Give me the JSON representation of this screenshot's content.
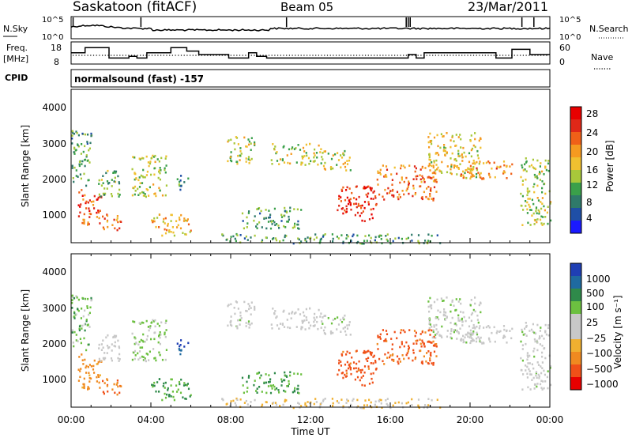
{
  "header": {
    "station": "Saskatoon (fitACF)",
    "beam": "Beam 05",
    "date": "23/Mar/2011"
  },
  "noise_panel": {
    "left_label": "N.Sky",
    "right_label": "N.Search",
    "left_ticks": [
      "10^5",
      "10^0"
    ],
    "right_ticks": [
      "10^5",
      "10^0"
    ]
  },
  "freq_panel": {
    "left_label_line1": "Freq.",
    "left_label_line2": "[MHz]",
    "left_ticks": [
      "18",
      "8"
    ],
    "right_label": "Nave",
    "right_ticks": [
      "60",
      "0"
    ],
    "freq_steps": [
      {
        "t": 0.0,
        "f": 14
      },
      {
        "t": 0.7,
        "f": 17
      },
      {
        "t": 1.9,
        "f": 11
      },
      {
        "t": 2.9,
        "f": 12
      },
      {
        "t": 3.3,
        "f": 11
      },
      {
        "t": 3.8,
        "f": 14
      },
      {
        "t": 5.0,
        "f": 17
      },
      {
        "t": 5.8,
        "f": 15
      },
      {
        "t": 6.4,
        "f": 13
      },
      {
        "t": 7.9,
        "f": 11
      },
      {
        "t": 8.9,
        "f": 14
      },
      {
        "t": 9.3,
        "f": 12
      },
      {
        "t": 9.8,
        "f": 11
      },
      {
        "t": 16.9,
        "f": 13
      },
      {
        "t": 17.3,
        "f": 11
      },
      {
        "t": 17.7,
        "f": 14
      },
      {
        "t": 21.3,
        "f": 11
      },
      {
        "t": 22.1,
        "f": 16
      },
      {
        "t": 23.0,
        "f": 13
      },
      {
        "t": 24.0,
        "f": 13
      }
    ],
    "nave_level": 30
  },
  "cpid": {
    "label": "CPID",
    "value": "normalsound (fast) -157"
  },
  "power_panel": {
    "ylabel": "Slant Range [km]",
    "yticks": [
      "4000",
      "3000",
      "2000",
      "1000"
    ],
    "colorbar_label": "Power [dB]",
    "colorbar_ticks": [
      "28",
      "24",
      "20",
      "16",
      "12",
      "8",
      "4"
    ],
    "colors": [
      "#1a1aff",
      "#1f4fa6",
      "#2f7a6a",
      "#3aa04a",
      "#a8c83a",
      "#f0c030",
      "#f59a20",
      "#f06018",
      "#e02818",
      "#e80000"
    ]
  },
  "velocity_panel": {
    "ylabel": "Slant Range [km]",
    "yticks": [
      "4000",
      "3000",
      "2000",
      "1000"
    ],
    "colorbar_label": "Velocity [m s⁻¹]",
    "colorbar_ticks": [
      "1000",
      "500",
      "100",
      "25",
      "−25",
      "−100",
      "−500",
      "−1000"
    ],
    "colors": [
      "#1f3fb4",
      "#1f6aa0",
      "#2f8a4a",
      "#6cc040",
      "#c8c8c8",
      "#c8c8c8",
      "#f0b030",
      "#f08a20",
      "#f05018",
      "#e80000"
    ]
  },
  "xaxis": {
    "label": "Time UT",
    "ticks": [
      "00:00",
      "04:00",
      "08:00",
      "12:00",
      "16:00",
      "20:00",
      "00:00"
    ]
  },
  "chart_data": {
    "type": "heatmap",
    "title": "Saskatoon (fitACF)   Beam 05   23/Mar/2011",
    "xlabel": "Time UT",
    "ylabel": "Slant Range [km]",
    "xlim_hours": [
      0,
      24
    ],
    "ylim_km": [
      180,
      4500
    ],
    "power_range_db": [
      0,
      30
    ],
    "velocity_range_ms": [
      -1000,
      1000
    ],
    "regions": [
      {
        "name": "early-sea-scatter",
        "t0": 0.3,
        "t1": 1.5,
        "r0": 700,
        "r1": 1700,
        "power": 24,
        "velocity": -150
      },
      {
        "name": "early-upper",
        "t0": 0.0,
        "t1": 1.0,
        "r0": 1800,
        "r1": 3400,
        "power": 10,
        "velocity": 40
      },
      {
        "name": "early-mid",
        "t0": 1.3,
        "t1": 2.5,
        "r0": 1500,
        "r1": 2300,
        "power": 12,
        "velocity": -20
      },
      {
        "name": "early-low",
        "t0": 1.5,
        "t1": 2.5,
        "r0": 500,
        "r1": 1000,
        "power": 22,
        "velocity": -300
      },
      {
        "name": "morning-mid",
        "t0": 3.0,
        "t1": 4.8,
        "r0": 1500,
        "r1": 2700,
        "power": 14,
        "velocity": 30
      },
      {
        "name": "morning-low",
        "t0": 4.0,
        "t1": 6.0,
        "r0": 400,
        "r1": 1000,
        "power": 18,
        "velocity": 60
      },
      {
        "name": "morning-high",
        "t0": 5.2,
        "t1": 5.9,
        "r0": 1700,
        "r1": 2100,
        "power": 8,
        "velocity": 800
      },
      {
        "name": "mid-upper",
        "t0": 7.8,
        "t1": 9.2,
        "r0": 2400,
        "r1": 3200,
        "power": 14,
        "velocity": 0
      },
      {
        "name": "mid-low",
        "t0": 8.5,
        "t1": 11.5,
        "r0": 600,
        "r1": 1200,
        "power": 10,
        "velocity": 60
      },
      {
        "name": "band-2600",
        "t0": 10.0,
        "t1": 12.5,
        "r0": 2400,
        "r1": 3000,
        "power": 14,
        "velocity": -10
      },
      {
        "name": "band-2600b",
        "t0": 12.5,
        "t1": 14.0,
        "r0": 2200,
        "r1": 2800,
        "power": 16,
        "velocity": 0
      },
      {
        "name": "afternoon-strong",
        "t0": 13.2,
        "t1": 15.3,
        "r0": 800,
        "r1": 1800,
        "power": 26,
        "velocity": -450
      },
      {
        "name": "afternoon-rising",
        "t0": 15.3,
        "t1": 18.3,
        "r0": 1400,
        "r1": 2400,
        "power": 22,
        "velocity": -350
      },
      {
        "name": "evening-upper",
        "t0": 17.8,
        "t1": 20.5,
        "r0": 2000,
        "r1": 3300,
        "power": 16,
        "velocity": 10
      },
      {
        "name": "evening-band",
        "t0": 19.5,
        "t1": 22.2,
        "r0": 2000,
        "r1": 2500,
        "power": 20,
        "velocity": -20
      },
      {
        "name": "late-low",
        "t0": 22.5,
        "t1": 24.0,
        "r0": 700,
        "r1": 2600,
        "power": 14,
        "velocity": 0
      },
      {
        "name": "near-range-noise",
        "t0": 7.5,
        "t1": 18.5,
        "r0": 180,
        "r1": 450,
        "power": 10,
        "velocity": -60
      }
    ]
  }
}
